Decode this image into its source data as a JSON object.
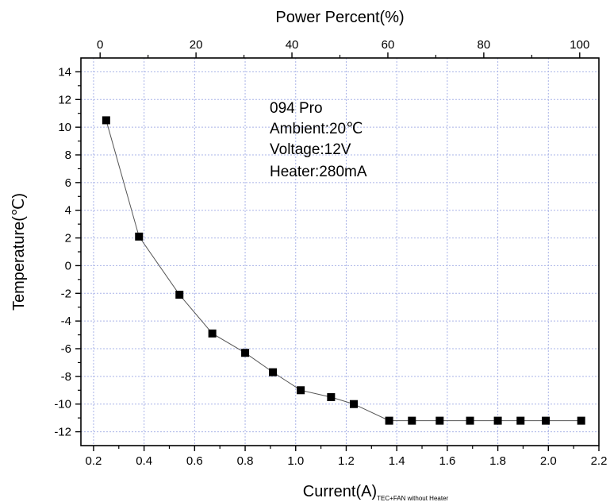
{
  "chart_data": {
    "type": "scatter",
    "line": true,
    "grid": true,
    "x": [
      0.25,
      0.38,
      0.54,
      0.67,
      0.8,
      0.91,
      1.02,
      1.14,
      1.23,
      1.37,
      1.46,
      1.57,
      1.69,
      1.8,
      1.89,
      1.99,
      2.13
    ],
    "y": [
      10.5,
      2.1,
      -2.1,
      -4.9,
      -6.3,
      -7.7,
      -9.0,
      -9.5,
      -10.0,
      -11.2,
      -11.2,
      -11.2,
      -11.2,
      -11.2,
      -11.2,
      -11.2,
      -11.2
    ],
    "xlim": [
      0.15,
      2.2
    ],
    "ylim": [
      -13,
      15
    ],
    "xticks": [
      0.2,
      0.4,
      0.6,
      0.8,
      1.0,
      1.2,
      1.4,
      1.6,
      1.8,
      2.0,
      2.2
    ],
    "xtick_labels": [
      "0.2",
      "0.4",
      "0.6",
      "0.8",
      "1.0",
      "1.2",
      "1.4",
      "1.6",
      "1.8",
      "2.0",
      "2.2"
    ],
    "yticks": [
      -12,
      -10,
      -8,
      -6,
      -4,
      -2,
      0,
      2,
      4,
      6,
      8,
      10,
      12,
      14
    ],
    "ytick_labels": [
      "-12",
      "-10",
      "-8",
      "-6",
      "-4",
      "-2",
      "0",
      "2",
      "4",
      "6",
      "8",
      "10",
      "12",
      "14"
    ],
    "top_axis": {
      "label": "Power Percent(%)",
      "ticks": [
        0,
        20,
        40,
        60,
        80,
        100
      ],
      "tick_labels": [
        "0",
        "20",
        "40",
        "60",
        "80",
        "100"
      ],
      "xlim": [
        -4.0,
        104.0
      ]
    },
    "xlabel": "Current(A)",
    "xlabel_subscript": "TEC+FAN without Heater",
    "ylabel": "Temperature(℃)",
    "annotations": [
      "094 Pro",
      "Ambient:20℃",
      "Voltage:12V",
      "Heater:280mA"
    ],
    "marker_color": "#000000",
    "line_color": "#555555",
    "grid_color": "#aab4e8"
  }
}
